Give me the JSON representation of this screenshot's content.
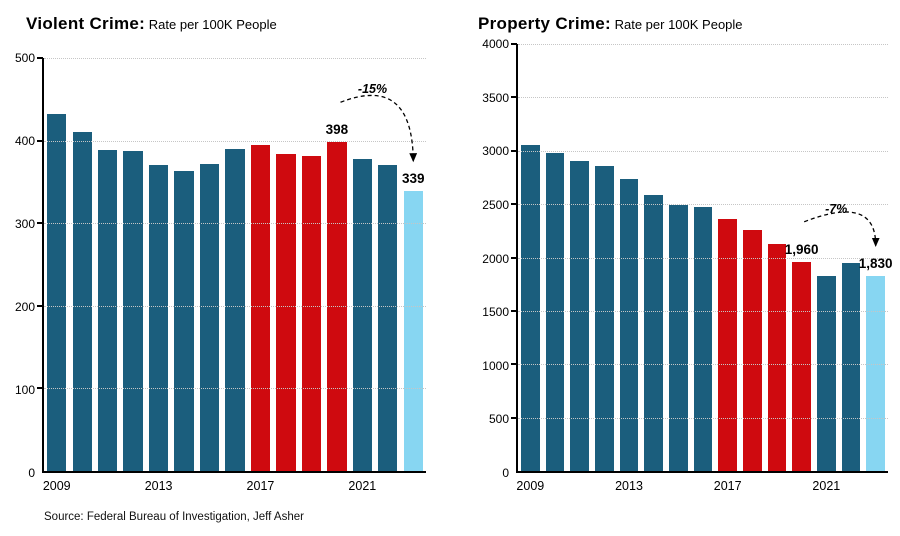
{
  "colors": {
    "teal": "#1b5e7d",
    "red": "#cf0a0f",
    "light_blue": "#87d6f2",
    "grid": "#c6c6c6",
    "axis": "#000000"
  },
  "source": "Source: Federal Bureau of Investigation, Jeff Asher",
  "chart_data": [
    {
      "type": "bar",
      "title": "Violent Crime: Rate per 100K People",
      "title_bold": "Violent Crime:",
      "title_rest": "Rate per 100K People",
      "years": [
        2009,
        2010,
        2011,
        2012,
        2013,
        2014,
        2015,
        2016,
        2017,
        2018,
        2019,
        2020,
        2021,
        2022,
        2023
      ],
      "values": [
        432,
        410,
        389,
        388,
        370,
        363,
        372,
        390,
        395,
        384,
        381,
        398,
        378,
        370,
        339
      ],
      "bar_color_keys": [
        "teal",
        "teal",
        "teal",
        "teal",
        "teal",
        "teal",
        "teal",
        "teal",
        "red",
        "red",
        "red",
        "red",
        "teal",
        "teal",
        "light_blue"
      ],
      "ylim": [
        0,
        500
      ],
      "yticks": [
        0,
        100,
        200,
        300,
        400,
        500
      ],
      "xtick_years": [
        2009,
        2013,
        2017,
        2021
      ],
      "xlabel": "",
      "ylabel": "",
      "annotations": {
        "pct_text": "-15%",
        "value_labels": [
          {
            "year": 2020,
            "text": "398"
          },
          {
            "year": 2023,
            "text": "339"
          }
        ]
      }
    },
    {
      "type": "bar",
      "title": "Property Crime: Rate per 100K People",
      "title_bold": "Property Crime:",
      "title_rest": "Rate per 100K People",
      "years": [
        2009,
        2010,
        2011,
        2012,
        2013,
        2014,
        2015,
        2016,
        2017,
        2018,
        2019,
        2020,
        2021,
        2022,
        2023
      ],
      "values": [
        3050,
        2980,
        2900,
        2860,
        2740,
        2590,
        2490,
        2470,
        2360,
        2260,
        2130,
        1960,
        1830,
        1950,
        1830
      ],
      "bar_color_keys": [
        "teal",
        "teal",
        "teal",
        "teal",
        "teal",
        "teal",
        "teal",
        "teal",
        "red",
        "red",
        "red",
        "red",
        "teal",
        "teal",
        "light_blue"
      ],
      "ylim": [
        0,
        4000
      ],
      "yticks": [
        0,
        500,
        1000,
        1500,
        2000,
        2500,
        3000,
        3500,
        4000
      ],
      "xtick_years": [
        2009,
        2013,
        2017,
        2021
      ],
      "xlabel": "",
      "ylabel": "",
      "annotations": {
        "pct_text": "-7%",
        "value_labels": [
          {
            "year": 2020,
            "text": "1,960"
          },
          {
            "year": 2023,
            "text": "1,830"
          }
        ]
      }
    }
  ]
}
